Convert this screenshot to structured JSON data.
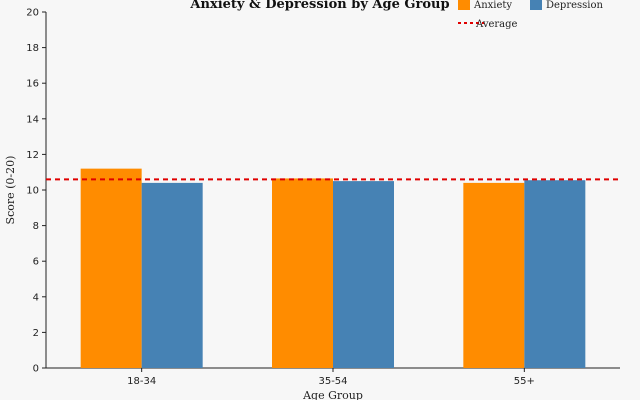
{
  "chart_data": {
    "type": "bar",
    "title": "Anxiety & Depression by Age Group",
    "xlabel": "Age Group",
    "ylabel": "Score (0-20)",
    "categories": [
      "18-34",
      "35-54",
      "55+"
    ],
    "series": [
      {
        "name": "Anxiety",
        "values": [
          11.2,
          10.65,
          10.4
        ],
        "color": "#ff8c00"
      },
      {
        "name": "Depression",
        "values": [
          10.4,
          10.5,
          10.55
        ],
        "color": "#4682b4"
      }
    ],
    "average": {
      "name": "Average",
      "value": 10.6,
      "color": "#e00000"
    },
    "ylim": [
      0,
      20
    ],
    "yticks": [
      0,
      2,
      4,
      6,
      8,
      10,
      12,
      14,
      16,
      18,
      20
    ],
    "grid": false,
    "legend_position": "top-right"
  }
}
